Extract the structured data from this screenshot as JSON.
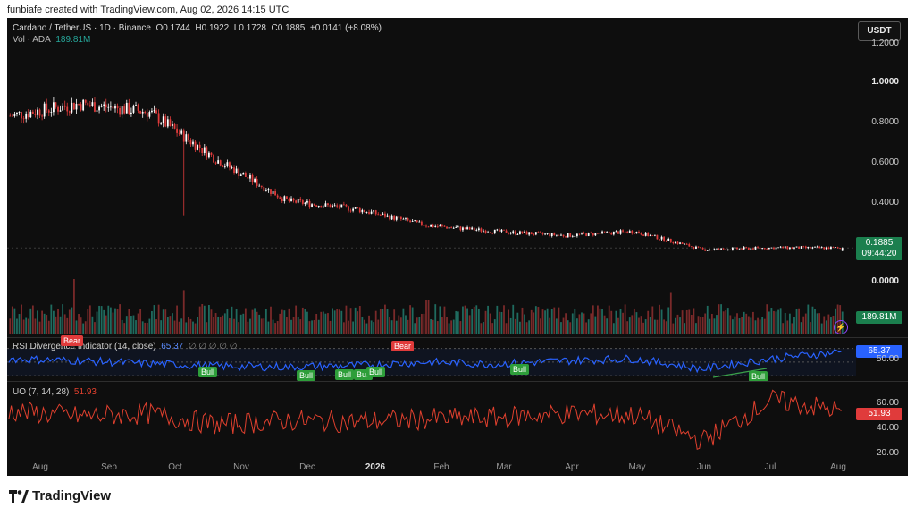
{
  "caption": "funbiafe created with TradingView.com, Aug 02, 2026 14:15 UTC",
  "header": {
    "symbol": "Cardano / TetherUS · 1D · Binance",
    "o_label": "O",
    "o_value": "0.1744",
    "h_label": "H",
    "h_value": "0.1922",
    "l_label": "L",
    "l_value": "0.1728",
    "c_label": "C",
    "c_value": "0.1885",
    "change": "+0.0141 (+8.08%)",
    "vol_label": "Vol · ADA",
    "vol_value": "189.81M"
  },
  "currency_button": "USDT",
  "price_axis": [
    "1.2000",
    "1.0000",
    "0.8000",
    "0.6000",
    "0.4000",
    "0.0000"
  ],
  "last_price_tag": {
    "price": "0.1885",
    "countdown": "09:44:20"
  },
  "volume_tag": "189.81M",
  "rsi": {
    "title": "RSI Divergence Indicator (14, close)",
    "value": "65.37",
    "dots": "∅ ∅ ∅ ∅ ∅",
    "axis_label": "50.00",
    "signals": [
      {
        "label": "Bear",
        "type": "bear"
      },
      {
        "label": "Bull",
        "type": "bull"
      },
      {
        "label": "Bull",
        "type": "bull"
      },
      {
        "label": "Bull",
        "type": "bull"
      },
      {
        "label": "Bull",
        "type": "bull"
      },
      {
        "label": "Bull",
        "type": "bull"
      },
      {
        "label": "Bear",
        "type": "bear"
      },
      {
        "label": "Bull",
        "type": "bull"
      },
      {
        "label": "Bull",
        "type": "bull"
      }
    ]
  },
  "uo": {
    "title": "UO (7, 14, 28)",
    "value": "51.93",
    "axis": [
      "60.00",
      "40.00",
      "20.00"
    ]
  },
  "x_axis": [
    "Aug",
    "Sep",
    "Oct",
    "Nov",
    "Dec",
    "2026",
    "Feb",
    "Mar",
    "Apr",
    "May",
    "Jun",
    "Jul",
    "Aug"
  ],
  "brand": "TradingView",
  "colors": {
    "up": "#ffffff",
    "down": "#e03b3b",
    "rsi_line": "#2962ff",
    "uo_line": "#e0402e",
    "last_price_tag": "#1b7f4e",
    "rsi_tag": "#2962ff",
    "uo_tag": "#e03b3b"
  },
  "chart_data": [
    {
      "type": "candlestick",
      "title": "Cardano / TetherUS · 1D · Binance",
      "x": [
        "Aug",
        "Sep",
        "Oct",
        "Nov",
        "Dec",
        "2026",
        "Feb",
        "Mar",
        "Apr",
        "May",
        "Jun",
        "Jul",
        "Aug"
      ],
      "close_trend": [
        0.84,
        0.9,
        0.86,
        0.62,
        0.42,
        0.38,
        0.3,
        0.27,
        0.25,
        0.27,
        0.18,
        0.19,
        0.1885
      ],
      "last": {
        "open": 0.1744,
        "high": 0.1922,
        "low": 0.1728,
        "close": 0.1885
      },
      "ylim": [
        0.0,
        1.2
      ]
    },
    {
      "type": "line",
      "title": "RSI Divergence Indicator (14, close)",
      "x": [
        "Aug",
        "Sep",
        "Oct",
        "Nov",
        "Dec",
        "2026",
        "Feb",
        "Mar",
        "Apr",
        "May",
        "Jun",
        "Jul",
        "Aug"
      ],
      "values": [
        55,
        52,
        48,
        44,
        43,
        45,
        50,
        47,
        52,
        55,
        40,
        55,
        65.37
      ]
    },
    {
      "type": "line",
      "title": "UO (7, 14, 28)",
      "x": [
        "Aug",
        "Sep",
        "Oct",
        "Nov",
        "Dec",
        "2026",
        "Feb",
        "Mar",
        "Apr",
        "May",
        "Jun",
        "Jul",
        "Aug"
      ],
      "values": [
        52,
        48,
        50,
        42,
        45,
        44,
        46,
        47,
        50,
        49,
        30,
        60,
        51.93
      ],
      "ylim": [
        15,
        70
      ]
    }
  ]
}
